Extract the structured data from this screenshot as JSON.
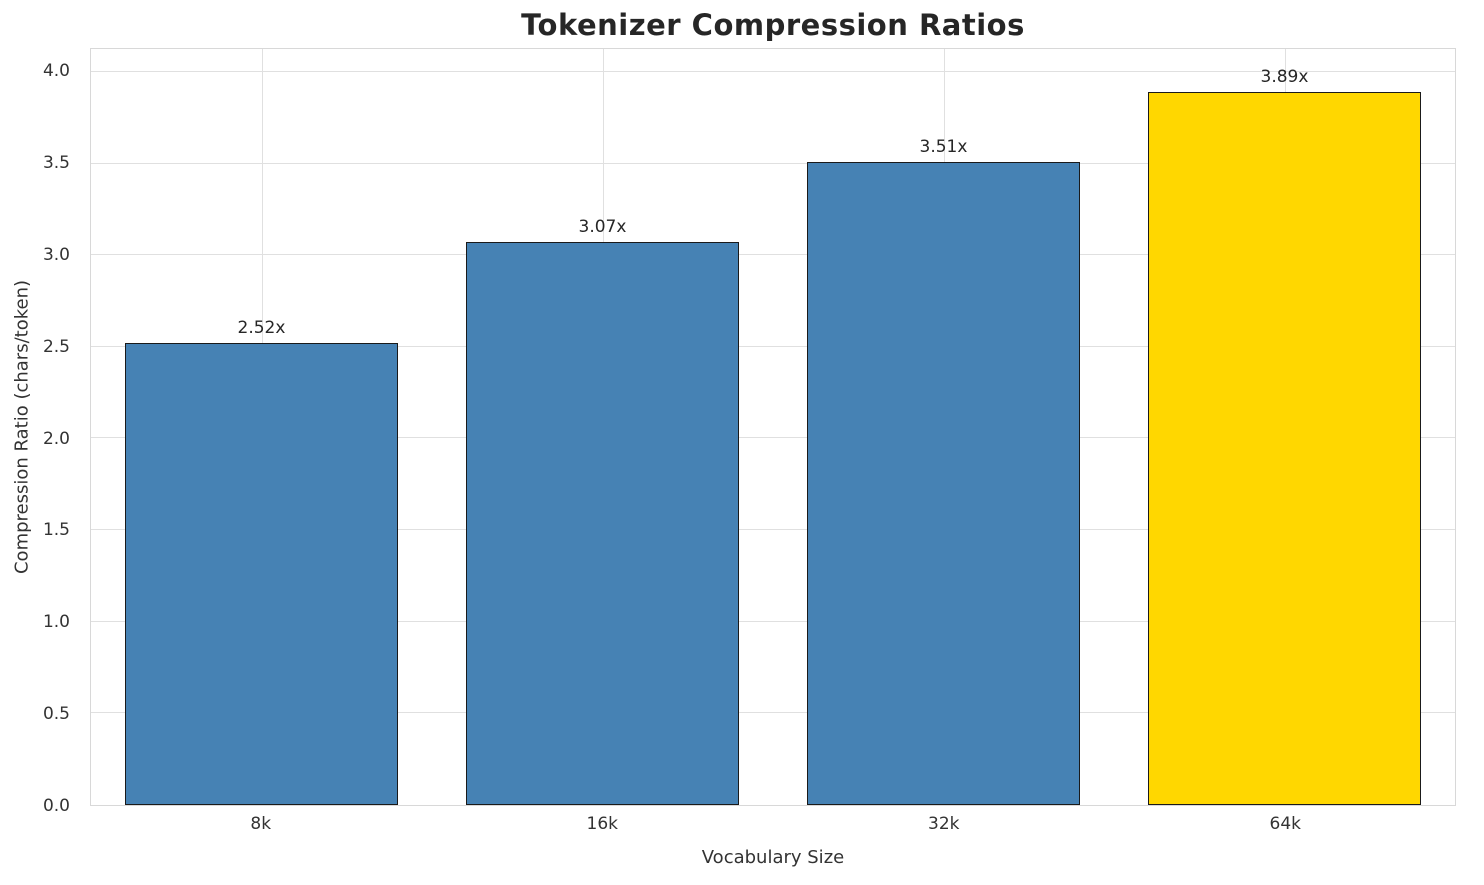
{
  "chart_data": {
    "type": "bar",
    "title": "Tokenizer Compression Ratios",
    "xlabel": "Vocabulary Size",
    "ylabel": "Compression Ratio (chars/token)",
    "categories": [
      "8k",
      "16k",
      "32k",
      "64k"
    ],
    "values": [
      2.52,
      3.07,
      3.51,
      3.89
    ],
    "bar_labels": [
      "2.52x",
      "3.07x",
      "3.51x",
      "3.89x"
    ],
    "bar_colors": [
      "#4682b4",
      "#4682b4",
      "#4682b4",
      "#ffd700"
    ],
    "bar_edge_color": "#1a1a1a",
    "yticks": [
      0.0,
      0.5,
      1.0,
      1.5,
      2.0,
      2.5,
      3.0,
      3.5,
      4.0
    ],
    "ytick_labels": [
      "0.0",
      "0.5",
      "1.0",
      "1.5",
      "2.0",
      "2.5",
      "3.0",
      "3.5",
      "4.0"
    ],
    "ylim": [
      0,
      4.125
    ],
    "grid": true,
    "grid_color": "#e0e0e0",
    "background": "#ffffff",
    "legend": null
  }
}
